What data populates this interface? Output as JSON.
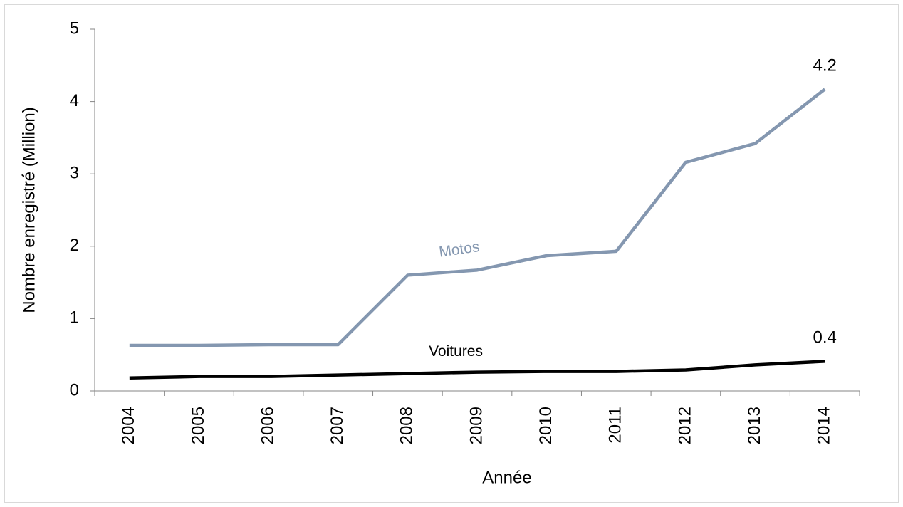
{
  "chart_data": {
    "type": "line",
    "x_label": "Année",
    "y_label": "Nombre enregistré (Million)",
    "categories": [
      "2004",
      "2005",
      "2006",
      "2007",
      "2008",
      "2009",
      "2010",
      "2011",
      "2012",
      "2013",
      "2014"
    ],
    "series": [
      {
        "name": "Motos",
        "color": "#8497b0",
        "values": [
          0.63,
          0.63,
          0.64,
          0.64,
          1.6,
          1.67,
          1.87,
          1.93,
          3.16,
          3.42,
          4.17
        ],
        "value_labels": [
          null,
          null,
          null,
          null,
          null,
          null,
          null,
          null,
          null,
          null,
          "4.2"
        ]
      },
      {
        "name": "Voitures",
        "color": "#000000",
        "values": [
          0.18,
          0.2,
          0.2,
          0.22,
          0.24,
          0.26,
          0.27,
          0.27,
          0.29,
          0.36,
          0.41
        ],
        "value_labels": [
          null,
          null,
          null,
          null,
          null,
          null,
          null,
          null,
          null,
          null,
          "0.4"
        ]
      }
    ],
    "ylim": [
      0,
      5
    ],
    "yticks": [
      0,
      1,
      2,
      3,
      4,
      5
    ],
    "grid": false
  }
}
